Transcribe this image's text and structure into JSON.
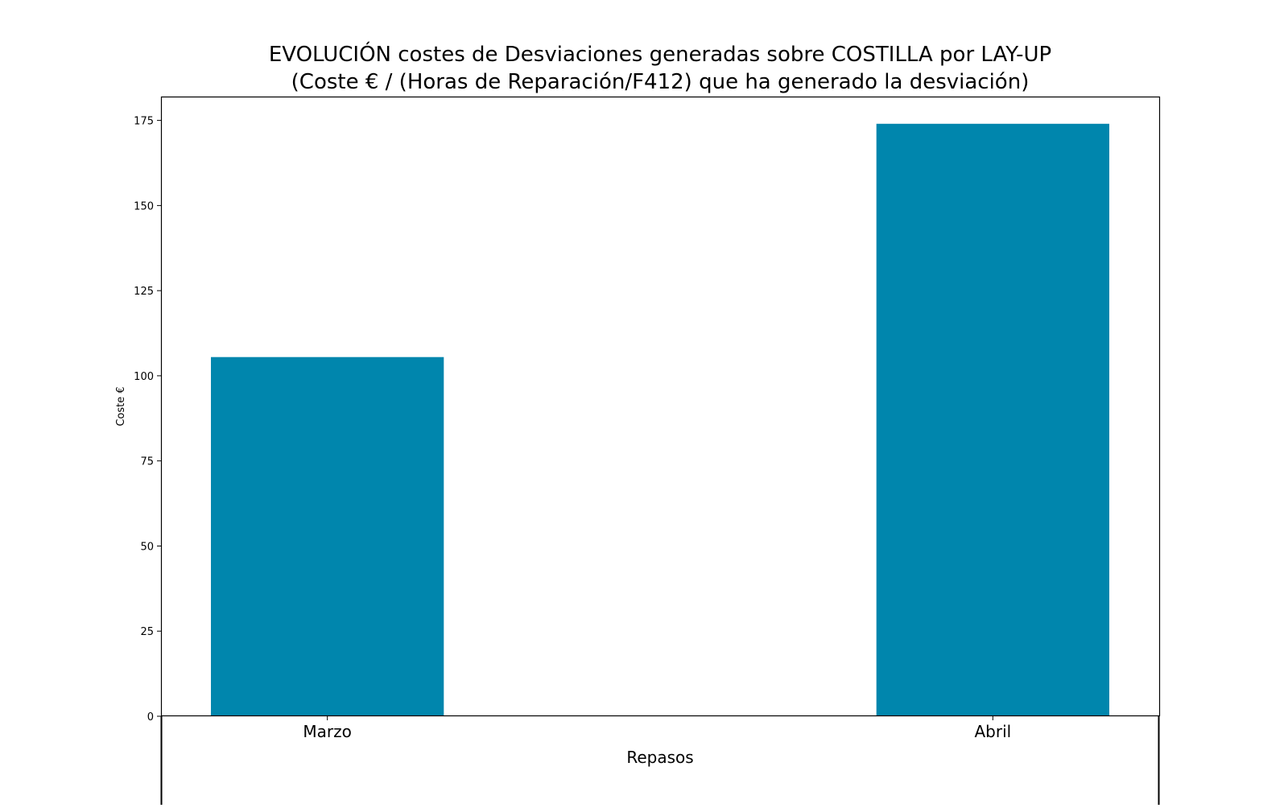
{
  "chart_data": {
    "type": "bar",
    "title_line1": "EVOLUCIÓN costes de Desviaciones  generadas  sobre COSTILLA por LAY-UP",
    "title_line2": "(Coste € / (Horas de Reparación/F412) que ha generado la desviación)",
    "xlabel": "Repasos",
    "ylabel": "Coste €",
    "categories": [
      "Marzo",
      "Abril"
    ],
    "values": [
      105.5,
      174
    ],
    "ylim": [
      0,
      182
    ],
    "yticks": [
      0,
      25,
      50,
      75,
      100,
      125,
      150,
      175
    ],
    "grid": false,
    "bar_color": "#0086ad"
  }
}
